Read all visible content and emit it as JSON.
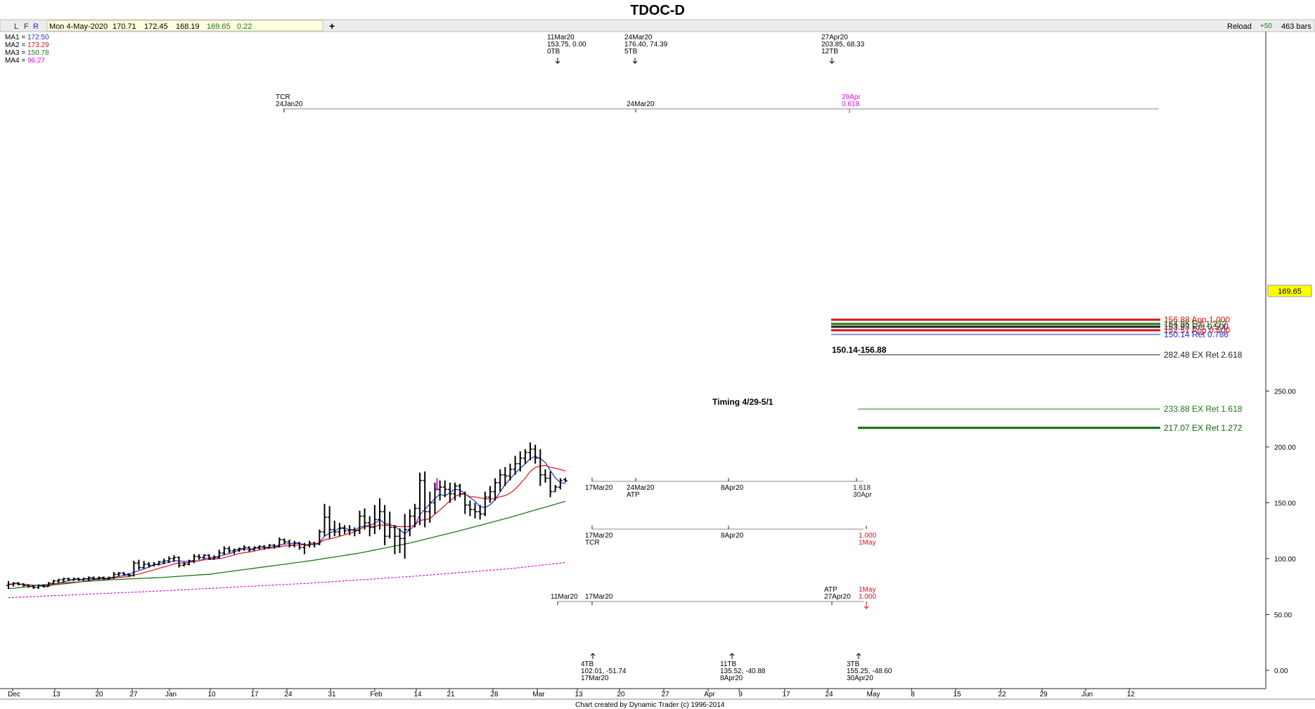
{
  "title": "TDOC-D",
  "toolbar": {
    "buttons": [
      "L",
      "F",
      "R"
    ],
    "date": "Mon 4-May-2020",
    "ohlc": [
      "170.71",
      "172.45",
      "168.19",
      "169.65",
      "0.22"
    ],
    "plus": "+",
    "reload": "Reload",
    "reload_delta": "+50",
    "bars": "463 bars"
  },
  "ma_legend": [
    {
      "label": "MA1 = ",
      "value": "172.50",
      "color": "#1f2fd0"
    },
    {
      "label": "MA2 = ",
      "value": "173.29",
      "color": "#e01010"
    },
    {
      "label": "MA3 = ",
      "value": "150.78",
      "color": "#1a7a1a"
    },
    {
      "label": "MA4 = ",
      "value": "96.27",
      "color": "#e010e0"
    }
  ],
  "current_price": "169.65",
  "footer": "Chart created by Dynamic Trader  (c)  1996-2014",
  "chart_data": {
    "type": "bar",
    "title": "TDOC-D",
    "y_axis": {
      "min": 0,
      "max": 280,
      "ticks": [
        "0.00",
        "50.00",
        "100.00",
        "150.00",
        "200.00",
        "250.00"
      ],
      "position": "right"
    },
    "x_axis_labels": [
      "Dec",
      "13",
      "20",
      "27",
      "Jan",
      "10",
      "17",
      "24",
      "31",
      "Feb",
      "14",
      "21",
      "28",
      "Mar",
      "13",
      "20",
      "27",
      "Apr",
      "9",
      "17",
      "24",
      "May",
      "8",
      "15",
      "22",
      "29",
      "Jun",
      "12"
    ],
    "ohlc_series": [
      [
        76,
        80,
        73,
        77
      ],
      [
        77,
        79,
        75,
        78
      ],
      [
        78,
        79,
        76,
        77
      ],
      [
        77,
        78,
        75,
        76
      ],
      [
        76,
        77,
        74,
        75
      ],
      [
        75,
        76,
        73,
        74
      ],
      [
        74,
        77,
        73,
        76
      ],
      [
        76,
        77,
        74,
        75
      ],
      [
        75,
        79,
        75,
        78
      ],
      [
        78,
        81,
        77,
        80
      ],
      [
        80,
        82,
        78,
        81
      ],
      [
        81,
        83,
        79,
        82
      ],
      [
        82,
        83,
        80,
        81
      ],
      [
        81,
        83,
        80,
        82
      ],
      [
        82,
        83,
        80,
        81
      ],
      [
        81,
        83,
        80,
        82
      ],
      [
        82,
        84,
        80,
        83
      ],
      [
        83,
        84,
        81,
        82
      ],
      [
        82,
        84,
        81,
        83
      ],
      [
        83,
        84,
        81,
        82
      ],
      [
        82,
        84,
        81,
        83
      ],
      [
        83,
        88,
        82,
        86
      ],
      [
        86,
        88,
        84,
        87
      ],
      [
        87,
        88,
        85,
        86
      ],
      [
        86,
        87,
        84,
        85
      ],
      [
        85,
        98,
        84,
        96
      ],
      [
        96,
        99,
        90,
        92
      ],
      [
        92,
        98,
        91,
        95
      ],
      [
        95,
        97,
        92,
        94
      ],
      [
        94,
        97,
        93,
        95
      ],
      [
        95,
        98,
        94,
        97
      ],
      [
        97,
        100,
        95,
        98
      ],
      [
        98,
        102,
        96,
        100
      ],
      [
        100,
        103,
        97,
        101
      ],
      [
        101,
        102,
        92,
        94
      ],
      [
        94,
        97,
        93,
        95
      ],
      [
        95,
        99,
        94,
        98
      ],
      [
        98,
        104,
        96,
        102
      ],
      [
        102,
        104,
        99,
        101
      ],
      [
        101,
        104,
        100,
        103
      ],
      [
        103,
        104,
        99,
        100
      ],
      [
        100,
        103,
        99,
        101
      ],
      [
        101,
        108,
        100,
        105
      ],
      [
        105,
        111,
        103,
        109
      ],
      [
        109,
        111,
        105,
        107
      ],
      [
        107,
        109,
        104,
        108
      ],
      [
        108,
        110,
        106,
        109
      ],
      [
        109,
        112,
        107,
        110
      ],
      [
        110,
        111,
        106,
        108
      ],
      [
        108,
        111,
        107,
        110
      ],
      [
        110,
        112,
        108,
        111
      ],
      [
        111,
        112,
        108,
        110
      ],
      [
        110,
        113,
        109,
        112
      ],
      [
        112,
        113,
        109,
        111
      ],
      [
        111,
        119,
        110,
        117
      ],
      [
        117,
        118,
        113,
        115
      ],
      [
        115,
        117,
        110,
        112
      ],
      [
        112,
        116,
        110,
        114
      ],
      [
        114,
        115,
        108,
        110
      ],
      [
        110,
        114,
        104,
        112
      ],
      [
        112,
        116,
        110,
        114
      ],
      [
        114,
        115,
        110,
        113
      ],
      [
        113,
        126,
        112,
        124
      ],
      [
        124,
        149,
        120,
        137
      ],
      [
        137,
        147,
        118,
        126
      ],
      [
        126,
        134,
        120,
        124
      ],
      [
        124,
        132,
        120,
        127
      ],
      [
        127,
        130,
        122,
        125
      ],
      [
        125,
        130,
        121,
        126
      ],
      [
        126,
        128,
        120,
        125
      ],
      [
        125,
        143,
        122,
        138
      ],
      [
        138,
        145,
        126,
        132
      ],
      [
        132,
        138,
        120,
        128
      ],
      [
        128,
        148,
        122,
        135
      ],
      [
        135,
        154,
        126,
        142
      ],
      [
        142,
        148,
        112,
        120
      ],
      [
        120,
        142,
        118,
        128
      ],
      [
        128,
        130,
        104,
        120
      ],
      [
        120,
        127,
        105,
        118
      ],
      [
        118,
        140,
        100,
        126
      ],
      [
        126,
        144,
        120,
        138
      ],
      [
        138,
        149,
        128,
        145
      ],
      [
        145,
        177,
        130,
        170
      ],
      [
        170,
        178,
        128,
        142
      ],
      [
        142,
        160,
        132,
        150
      ],
      [
        150,
        168,
        140,
        162
      ],
      [
        162,
        170,
        152,
        164
      ],
      [
        164,
        170,
        155,
        162
      ],
      [
        162,
        168,
        150,
        158
      ],
      [
        158,
        168,
        152,
        165
      ],
      [
        165,
        167,
        155,
        158
      ],
      [
        158,
        160,
        140,
        148
      ],
      [
        148,
        152,
        138,
        144
      ],
      [
        144,
        150,
        136,
        142
      ],
      [
        142,
        148,
        135,
        140
      ],
      [
        140,
        160,
        138,
        155
      ],
      [
        155,
        165,
        150,
        160
      ],
      [
        160,
        172,
        152,
        168
      ],
      [
        168,
        180,
        160,
        175
      ],
      [
        175,
        182,
        165,
        174
      ],
      [
        174,
        185,
        170,
        180
      ],
      [
        180,
        192,
        175,
        185
      ],
      [
        185,
        196,
        178,
        190
      ],
      [
        190,
        198,
        185,
        195
      ],
      [
        195,
        204,
        188,
        198
      ],
      [
        198,
        202,
        185,
        190
      ],
      [
        190,
        198,
        165,
        175
      ],
      [
        175,
        180,
        168,
        172
      ],
      [
        172,
        178,
        155,
        160
      ],
      [
        160,
        166,
        160,
        164
      ],
      [
        164,
        172,
        162,
        170
      ],
      [
        170.71,
        172.45,
        168.19,
        169.65
      ]
    ],
    "magenta_bar": [
      161,
      172
    ],
    "ma_lines": [
      {
        "name": "MA1",
        "color": "#1f2fd0",
        "last": 172.5
      },
      {
        "name": "MA2",
        "color": "#e01010",
        "last": 173.29
      },
      {
        "name": "MA3",
        "color": "#1a7a1a",
        "last": 150.78
      },
      {
        "name": "MA4",
        "color": "#e010e0",
        "last": 96.27
      }
    ],
    "ma3_points": [
      [
        0,
        73
      ],
      [
        10,
        78
      ],
      [
        20,
        81
      ],
      [
        30,
        83
      ],
      [
        40,
        86
      ],
      [
        50,
        92
      ],
      [
        60,
        98
      ],
      [
        70,
        105
      ],
      [
        80,
        114
      ],
      [
        90,
        125
      ],
      [
        100,
        137
      ],
      [
        110,
        150
      ]
    ],
    "ma4_points": [
      [
        0,
        65
      ],
      [
        30,
        71
      ],
      [
        60,
        78
      ],
      [
        80,
        84
      ],
      [
        100,
        91
      ],
      [
        110,
        96
      ]
    ],
    "projection_levels": [
      {
        "value": 282.48,
        "label": "282.48 EX Ret 2.618",
        "color": "#222222",
        "width": 1
      },
      {
        "value": 233.88,
        "label": "233.88 EX Ret 1.618",
        "color": "#1a7a1a",
        "width": 1
      },
      {
        "value": 217.07,
        "label": "217.07 EX Ret 1.272",
        "color": "#0a6a0a",
        "width": 3
      },
      {
        "value": 156.88,
        "label": "156.88 App 1.000",
        "color": "#e01010",
        "width": 3
      },
      {
        "value": 154.95,
        "label": "154.95 EX 1.272",
        "color": "#1a7a1a",
        "width": 3
      },
      {
        "value": 153.93,
        "label": "153.93 Ret 0.500",
        "color": "#222222",
        "width": 3
      },
      {
        "value": 152.57,
        "label": "152.57 App 0.500",
        "color": "#e01010",
        "width": 3
      },
      {
        "value": 150.14,
        "label": "150.14 Ret 0.786",
        "color": "#1f2fd0",
        "width": 1
      }
    ],
    "annotations": [
      {
        "text": "150.14-156.88",
        "bold": true
      },
      {
        "text": "Timing 4/29-5/1",
        "bold": true
      }
    ],
    "top_labels": [
      {
        "lines": [
          "11Mar20",
          "153.75, 0.00",
          "0TB"
        ]
      },
      {
        "lines": [
          "24Mar20",
          "176.40, 74.39",
          "5TB"
        ]
      },
      {
        "lines": [
          "27Apr20",
          "203.85, 68.33",
          "12TB"
        ]
      }
    ],
    "tcr_row": {
      "labels": [
        "TCR",
        "24Jan20",
        "24Mar20"
      ],
      "magenta": [
        "29Apr",
        "0.618"
      ]
    },
    "timing_rows": [
      {
        "labels": [
          "17Mar20",
          "24Mar20",
          "ATP",
          "8Apr20"
        ],
        "end": [
          "1.618",
          "30Apr"
        ],
        "end_color": "#222222"
      },
      {
        "labels": [
          "17Mar20",
          "TCR",
          "8Apr20"
        ],
        "end": [
          "1.000",
          "1May"
        ],
        "end_color": "#e01010"
      },
      {
        "labels": [
          "11Mar20",
          "17Mar20",
          "ATP",
          "27Apr20"
        ],
        "end": [
          "1May",
          "1.000"
        ],
        "end_color": "#e01010"
      }
    ],
    "bottom_labels": [
      {
        "lines": [
          "4TB",
          "102.01, -51.74",
          "17Mar20"
        ]
      },
      {
        "lines": [
          "11TB",
          "135.52, -40.88",
          "8Apr20"
        ]
      },
      {
        "lines": [
          "3TB",
          "155.25, -48.60",
          "30Apr20"
        ]
      }
    ]
  }
}
